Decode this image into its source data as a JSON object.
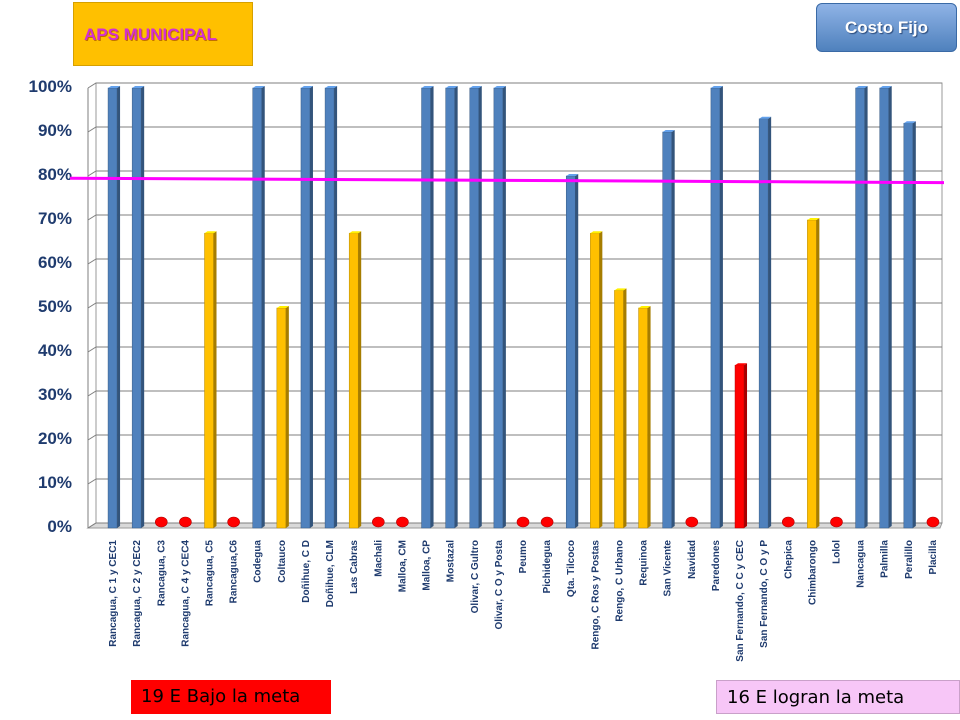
{
  "title_box": "APS MUNICIPAL",
  "costo_label": "Costo Fijo",
  "footer": {
    "below_goal": "19 E Bajo la meta",
    "meet_goal": "16 E logran la meta"
  },
  "colors": {
    "blue": "#4f81bd",
    "yellow": "#ffc000",
    "red": "#ff0000",
    "goal_line": "#ff00ff"
  },
  "chart_data": {
    "type": "bar",
    "ylim": [
      0,
      100
    ],
    "yticks": [
      "0%",
      "10%",
      "20%",
      "30%",
      "40%",
      "50%",
      "60%",
      "70%",
      "80%",
      "90%",
      "100%"
    ],
    "goal_line": {
      "start": 79.5,
      "end": 78.5
    },
    "categories": [
      "Rancagua, C 1 y CEC1",
      "Rancagua, C 2 y CEC2",
      "Rancagua, C3",
      "Rancagua, C 4 y CEC4",
      "Rancagua, C5",
      "Rancagua,C6",
      "Codegua",
      "Coltauco",
      "Doñihue, C D",
      "Doñihue, CLM",
      "Las Cabras",
      "Machali",
      "Malloa, CM",
      "Malloa, CP",
      "Mostazal",
      "Olivar, C Gultro",
      "Olivar, C O y Posta",
      "Peumo",
      "Pichidegua",
      "Qta. Tilcoco",
      "Rengo, C Ros y Postas",
      "Rengo, C Urbano",
      "Requinoa",
      "San Vicente",
      "Navidad",
      "Paredones",
      "San Fernando, C C y CEC",
      "San Fernando, C O y P",
      "Chepica",
      "Chimbarongo",
      "Lolol",
      "Nancagua",
      "Palmilla",
      "Peralillo",
      "Placilla"
    ],
    "values": [
      100,
      100,
      0,
      0,
      67,
      0,
      100,
      50,
      100,
      100,
      67,
      0,
      0,
      100,
      100,
      100,
      100,
      0,
      0,
      80,
      67,
      54,
      50,
      90,
      0,
      100,
      37,
      93,
      0,
      70,
      0,
      100,
      100,
      92,
      0
    ],
    "bar_colors": [
      "blue",
      "blue",
      "red",
      "red",
      "yellow",
      "red",
      "blue",
      "yellow",
      "blue",
      "blue",
      "yellow",
      "red",
      "red",
      "blue",
      "blue",
      "blue",
      "blue",
      "red",
      "red",
      "blue",
      "yellow",
      "yellow",
      "yellow",
      "blue",
      "red",
      "blue",
      "red",
      "blue",
      "red",
      "yellow",
      "red",
      "blue",
      "blue",
      "blue",
      "red"
    ]
  }
}
